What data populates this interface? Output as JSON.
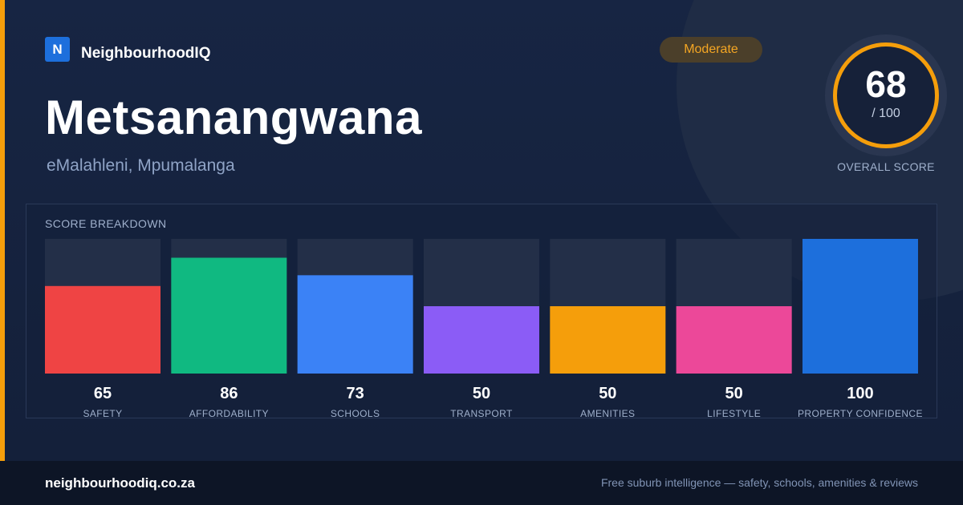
{
  "brand": {
    "logo_letter": "N",
    "name": "NeighbourhoodIQ"
  },
  "suburb": {
    "name": "Metsanangwana",
    "location": "eMalahleni, Mpumalanga"
  },
  "rating_badge": "Moderate",
  "overall": {
    "score": "68",
    "max_label": "/ 100",
    "caption": "OVERALL SCORE"
  },
  "breakdown_title": "SCORE BREAKDOWN",
  "colors": {
    "accent": "#f59e0b",
    "track": "#232f48",
    "safety": "#ef4444",
    "affordability": "#10b981",
    "schools": "#3b82f6",
    "transport": "#8b5cf6",
    "amenities": "#f59e0b",
    "lifestyle": "#ec4899",
    "property_confidence": "#1d6fdc"
  },
  "chart_data": {
    "type": "bar",
    "title": "SCORE BREAKDOWN",
    "categories": [
      "SAFETY",
      "AFFORDABILITY",
      "SCHOOLS",
      "TRANSPORT",
      "AMENITIES",
      "LIFESTYLE",
      "PROPERTY CONFIDENCE"
    ],
    "values": [
      65,
      86,
      73,
      50,
      50,
      50,
      100
    ],
    "value_labels": [
      "65",
      "86",
      "73",
      "50",
      "50",
      "50",
      "100"
    ],
    "colors": [
      "#ef4444",
      "#10b981",
      "#3b82f6",
      "#8b5cf6",
      "#f59e0b",
      "#ec4899",
      "#1d6fdc"
    ],
    "ylim": [
      0,
      100
    ],
    "xlabel": "",
    "ylabel": "",
    "grid": false,
    "legend": "none"
  },
  "footer": {
    "domain": "neighbourhoodiq.co.za",
    "tagline": "Free suburb intelligence — safety, schools, amenities & reviews"
  }
}
